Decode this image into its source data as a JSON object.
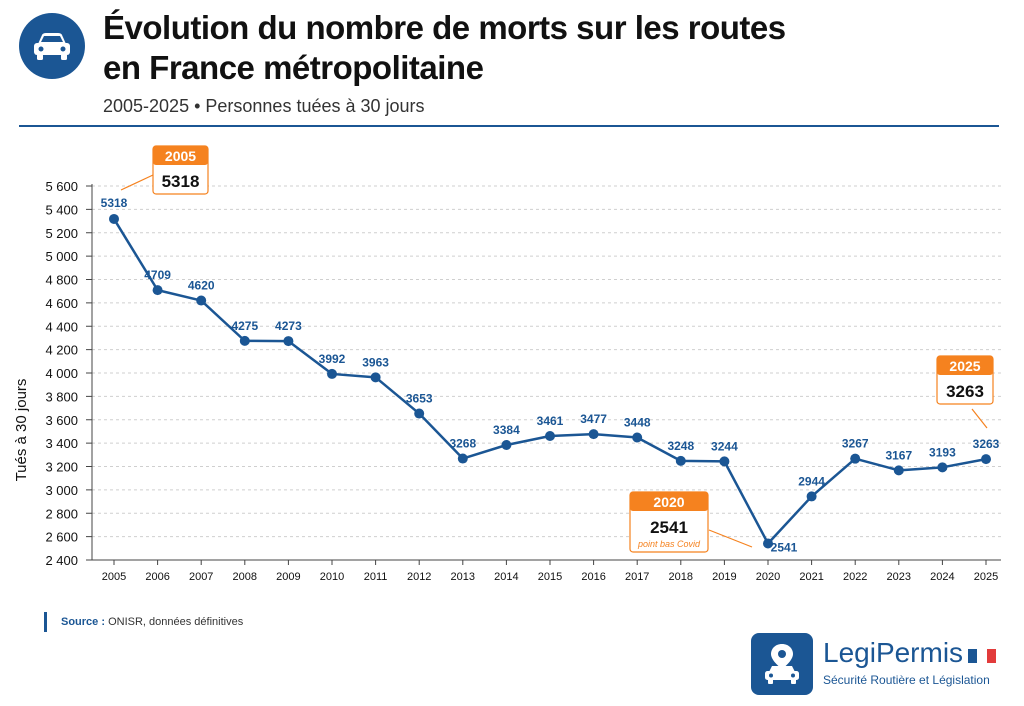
{
  "header": {
    "title_line1": "Évolution du nombre de morts sur les routes",
    "title_line2": "en France métropolitaine",
    "subtitle": "2005-2025 • Personnes tuées à 30 jours"
  },
  "chart_data": {
    "type": "line",
    "ylabel": "Tués à 30 jours",
    "ylim": [
      2400,
      5600
    ],
    "yticks": [
      2400,
      2600,
      2800,
      3000,
      3200,
      3400,
      3600,
      3800,
      4000,
      4200,
      4400,
      4600,
      4800,
      5000,
      5200,
      5400,
      5600
    ],
    "ytick_labels": [
      "2 400",
      "2 600",
      "2 800",
      "3 000",
      "3 200",
      "3 400",
      "3 600",
      "3 800",
      "4 000",
      "4 200",
      "4 400",
      "4 600",
      "4 800",
      "5 000",
      "5 200",
      "5 400",
      "5 600"
    ],
    "grid": true,
    "categories": [
      "2005",
      "2006",
      "2007",
      "2008",
      "2009",
      "2010",
      "2011",
      "2012",
      "2013",
      "2014",
      "2015",
      "2016",
      "2017",
      "2018",
      "2019",
      "2020",
      "2021",
      "2022",
      "2023",
      "2024",
      "2025"
    ],
    "series": [
      {
        "values": [
          5318,
          4709,
          4620,
          4275,
          4273,
          3992,
          3963,
          3653,
          3268,
          3384,
          3461,
          3477,
          3448,
          3248,
          3244,
          2541,
          2944,
          3267,
          3167,
          3193,
          3263
        ]
      }
    ],
    "line_color": "#1b5694",
    "accent_color": "#f5821f",
    "callouts": [
      {
        "year": "2005",
        "value": "5318",
        "note": ""
      },
      {
        "year": "2020",
        "value": "2541",
        "note": "point bas Covid"
      },
      {
        "year": "2025",
        "value": "3263",
        "note": ""
      }
    ]
  },
  "source": {
    "label": "Source :",
    "text": " ONISR, données définitives"
  },
  "logo": {
    "name": "LegiPermis",
    "tagline": "Sécurité Routière et Législation"
  }
}
